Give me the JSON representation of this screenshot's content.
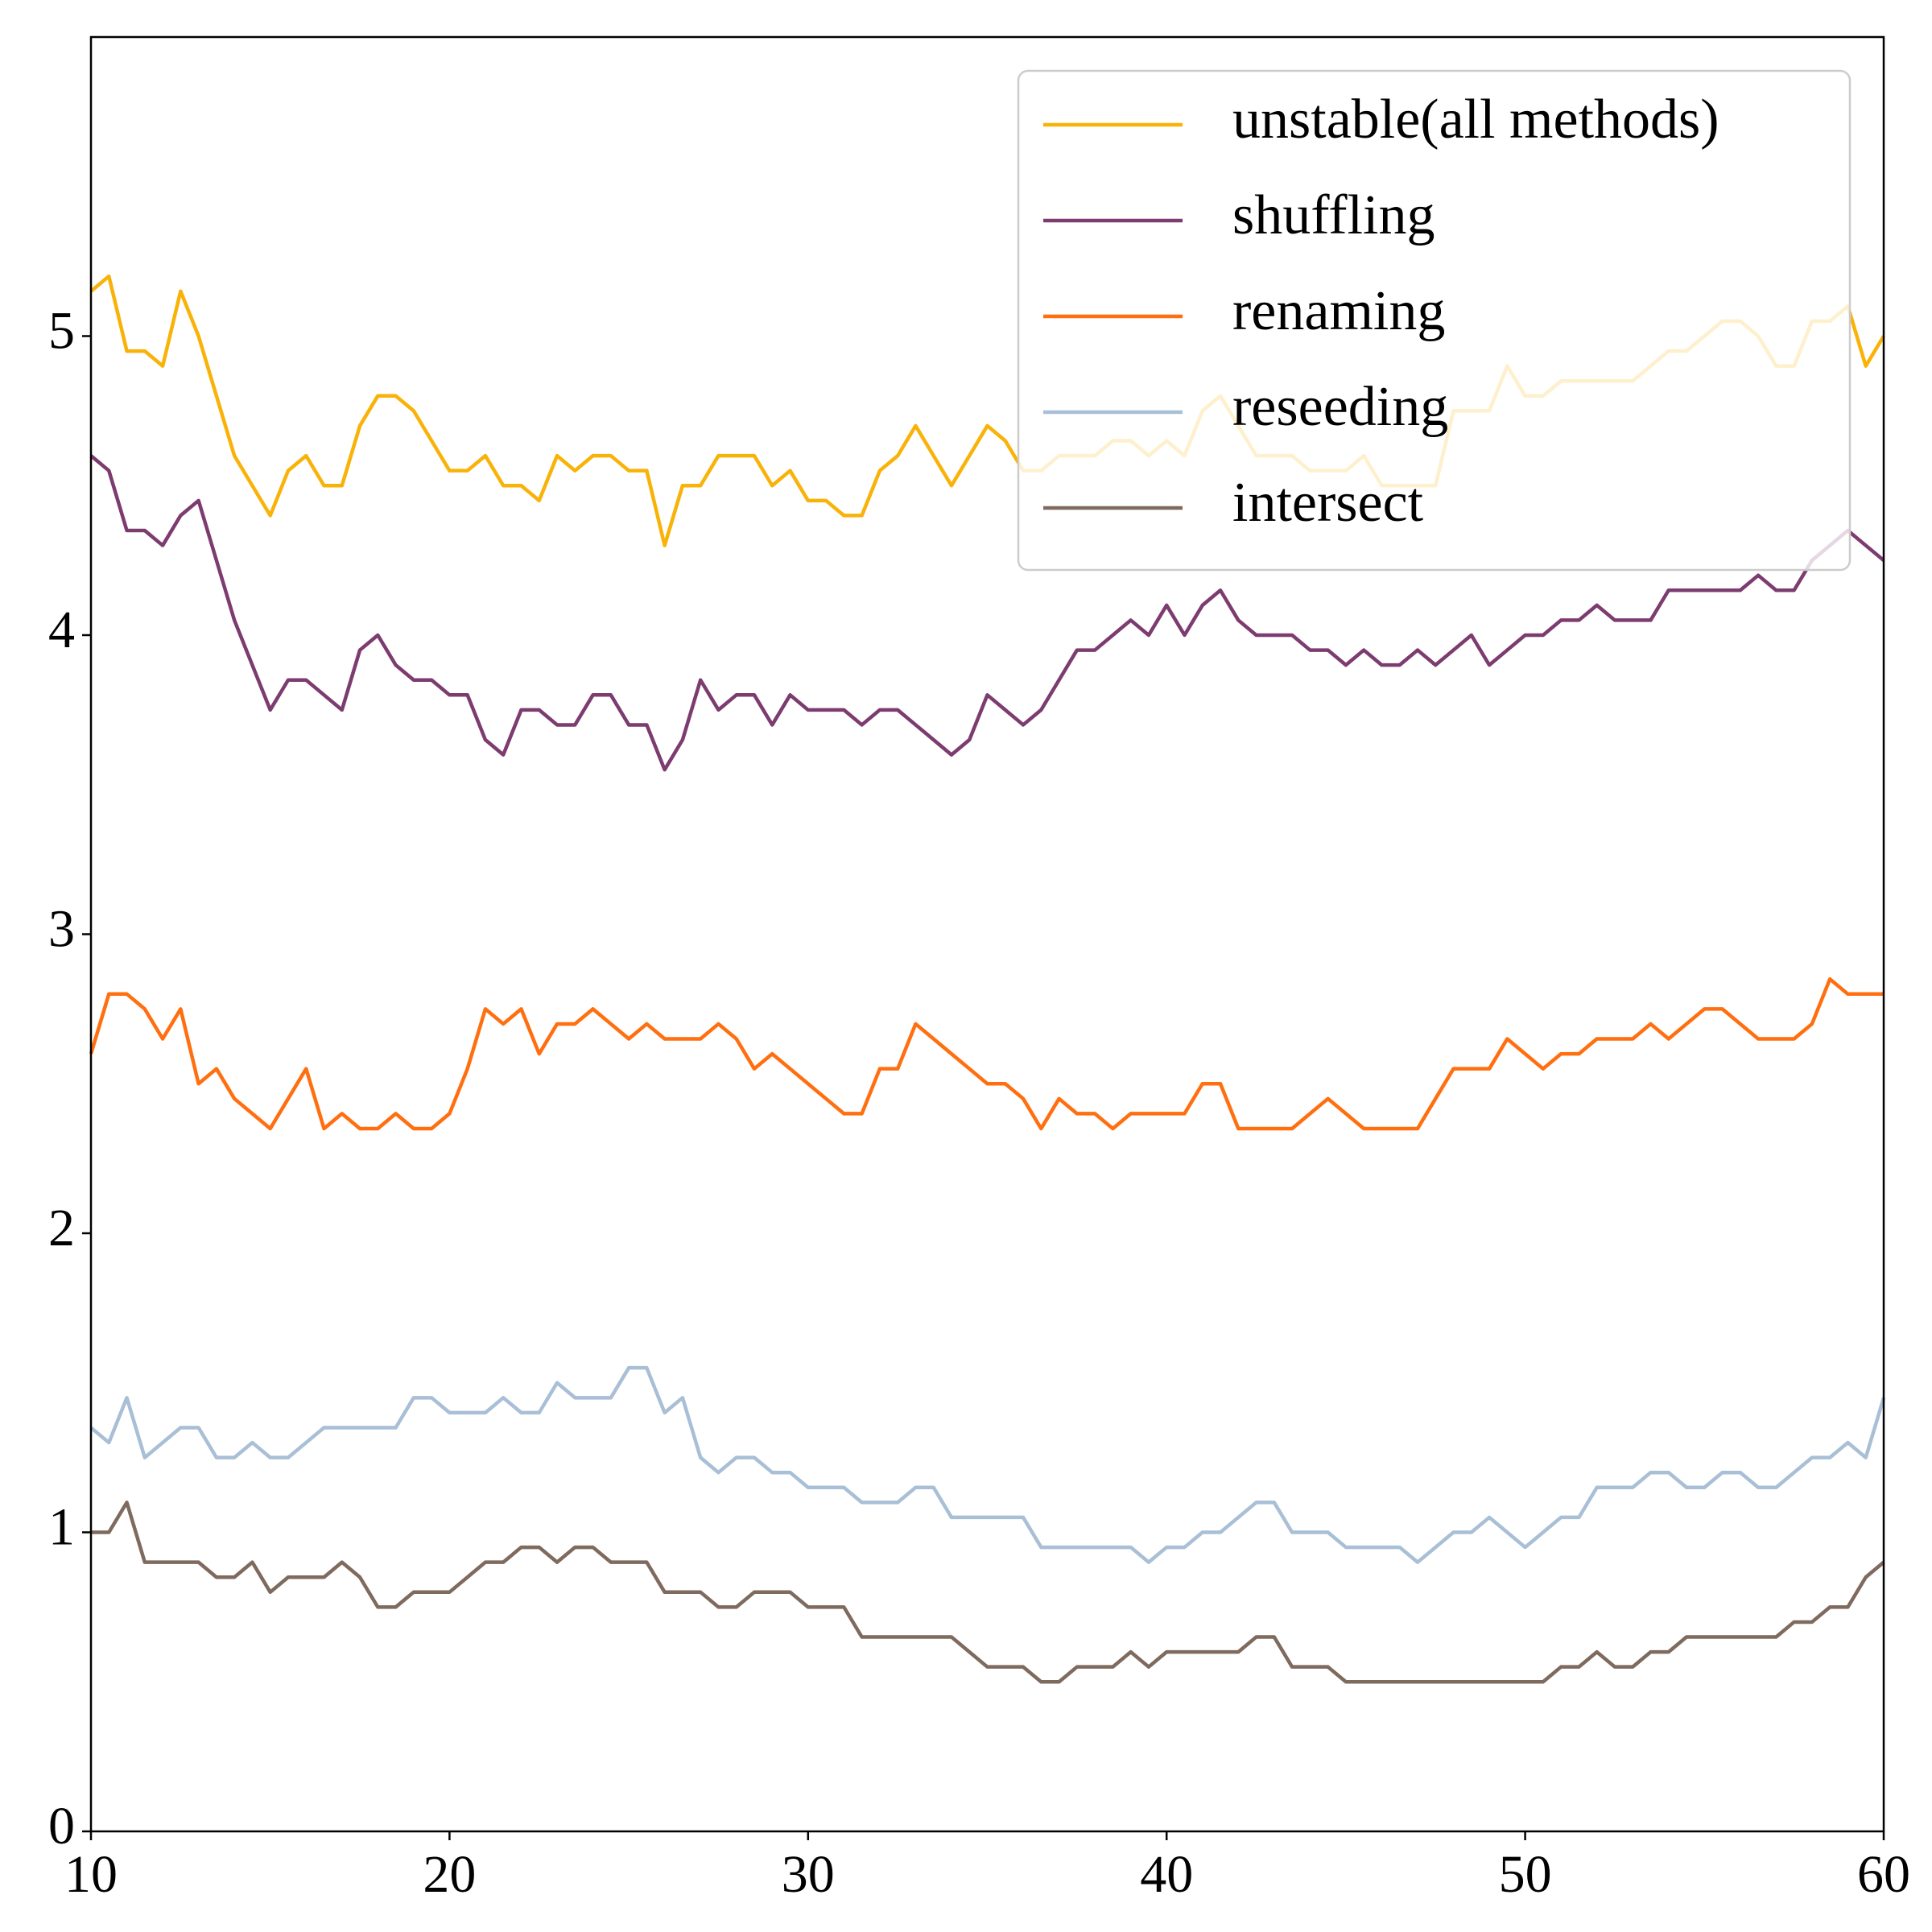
{
  "chart_data": {
    "type": "line",
    "x": [
      10,
      10.5,
      11,
      11.5,
      12,
      12.5,
      13,
      13.5,
      14,
      14.5,
      15,
      15.5,
      16,
      16.5,
      17,
      17.5,
      18,
      18.5,
      19,
      19.5,
      20,
      20.5,
      21,
      21.5,
      22,
      22.5,
      23,
      23.5,
      24,
      24.5,
      25,
      25.5,
      26,
      26.5,
      27,
      27.5,
      28,
      28.5,
      29,
      29.5,
      30,
      30.5,
      31,
      31.5,
      32,
      32.5,
      33,
      33.5,
      34,
      34.5,
      35,
      35.5,
      36,
      36.5,
      37,
      37.5,
      38,
      38.5,
      39,
      39.5,
      40,
      40.5,
      41,
      41.5,
      42,
      42.5,
      43,
      43.5,
      44,
      44.5,
      45,
      45.5,
      46,
      46.5,
      47,
      47.5,
      48,
      48.5,
      49,
      49.5,
      50,
      50.5,
      51,
      51.5,
      52,
      52.5,
      53,
      53.5,
      54,
      54.5,
      55,
      55.5,
      56,
      56.5,
      57,
      57.5,
      58,
      58.5,
      59,
      59.5,
      60
    ],
    "series": [
      {
        "name": "unstable(all methods)",
        "color": "#f9b208",
        "values": [
          5.15,
          5.2,
          4.95,
          4.95,
          4.9,
          5.15,
          5.0,
          4.8,
          4.6,
          4.5,
          4.4,
          4.55,
          4.6,
          4.5,
          4.5,
          4.7,
          4.8,
          4.8,
          4.75,
          4.65,
          4.55,
          4.55,
          4.6,
          4.5,
          4.5,
          4.45,
          4.6,
          4.55,
          4.6,
          4.6,
          4.55,
          4.55,
          4.3,
          4.5,
          4.5,
          4.6,
          4.6,
          4.6,
          4.5,
          4.55,
          4.45,
          4.45,
          4.4,
          4.4,
          4.55,
          4.6,
          4.7,
          4.6,
          4.5,
          4.6,
          4.7,
          4.65,
          4.55,
          4.55,
          4.6,
          4.6,
          4.6,
          4.65,
          4.65,
          4.6,
          4.65,
          4.6,
          4.75,
          4.8,
          4.7,
          4.6,
          4.6,
          4.6,
          4.55,
          4.55,
          4.55,
          4.6,
          4.5,
          4.5,
          4.5,
          4.5,
          4.75,
          4.75,
          4.75,
          4.9,
          4.8,
          4.8,
          4.85,
          4.85,
          4.85,
          4.85,
          4.85,
          4.9,
          4.95,
          4.95,
          5.0,
          5.05,
          5.05,
          5.0,
          4.9,
          4.9,
          5.05,
          5.05,
          5.1,
          4.9,
          5.0
        ]
      },
      {
        "name": "shuffling",
        "color": "#7d3c6f",
        "values": [
          4.6,
          4.55,
          4.35,
          4.35,
          4.3,
          4.4,
          4.45,
          4.25,
          4.05,
          3.9,
          3.75,
          3.85,
          3.85,
          3.8,
          3.75,
          3.95,
          4.0,
          3.9,
          3.85,
          3.85,
          3.8,
          3.8,
          3.65,
          3.6,
          3.75,
          3.75,
          3.7,
          3.7,
          3.8,
          3.8,
          3.7,
          3.7,
          3.55,
          3.65,
          3.85,
          3.75,
          3.8,
          3.8,
          3.7,
          3.8,
          3.75,
          3.75,
          3.75,
          3.7,
          3.75,
          3.75,
          3.7,
          3.65,
          3.6,
          3.65,
          3.8,
          3.75,
          3.7,
          3.75,
          3.85,
          3.95,
          3.95,
          4.0,
          4.05,
          4.0,
          4.1,
          4.0,
          4.1,
          4.15,
          4.05,
          4.0,
          4.0,
          4.0,
          3.95,
          3.95,
          3.9,
          3.95,
          3.9,
          3.9,
          3.95,
          3.9,
          3.95,
          4.0,
          3.9,
          3.95,
          4.0,
          4.0,
          4.05,
          4.05,
          4.1,
          4.05,
          4.05,
          4.05,
          4.15,
          4.15,
          4.15,
          4.15,
          4.15,
          4.2,
          4.15,
          4.15,
          4.25,
          4.3,
          4.35,
          4.3,
          4.25
        ]
      },
      {
        "name": "renaming",
        "color": "#ff6f10",
        "values": [
          2.6,
          2.8,
          2.8,
          2.75,
          2.65,
          2.75,
          2.5,
          2.55,
          2.45,
          2.4,
          2.35,
          2.45,
          2.55,
          2.35,
          2.4,
          2.35,
          2.35,
          2.4,
          2.35,
          2.35,
          2.4,
          2.55,
          2.75,
          2.7,
          2.75,
          2.6,
          2.7,
          2.7,
          2.75,
          2.7,
          2.65,
          2.7,
          2.65,
          2.65,
          2.65,
          2.7,
          2.65,
          2.55,
          2.6,
          2.55,
          2.5,
          2.45,
          2.4,
          2.4,
          2.55,
          2.55,
          2.7,
          2.65,
          2.6,
          2.55,
          2.5,
          2.5,
          2.45,
          2.35,
          2.45,
          2.4,
          2.4,
          2.35,
          2.4,
          2.4,
          2.4,
          2.4,
          2.5,
          2.5,
          2.35,
          2.35,
          2.35,
          2.35,
          2.4,
          2.45,
          2.4,
          2.35,
          2.35,
          2.35,
          2.35,
          2.45,
          2.55,
          2.55,
          2.55,
          2.65,
          2.6,
          2.55,
          2.6,
          2.6,
          2.65,
          2.65,
          2.65,
          2.7,
          2.65,
          2.7,
          2.75,
          2.75,
          2.7,
          2.65,
          2.65,
          2.65,
          2.7,
          2.85,
          2.8,
          2.8,
          2.8
        ]
      },
      {
        "name": "reseeding",
        "color": "#a9bfd6",
        "values": [
          1.35,
          1.3,
          1.45,
          1.25,
          1.3,
          1.35,
          1.35,
          1.25,
          1.25,
          1.3,
          1.25,
          1.25,
          1.3,
          1.35,
          1.35,
          1.35,
          1.35,
          1.35,
          1.45,
          1.45,
          1.4,
          1.4,
          1.4,
          1.45,
          1.4,
          1.4,
          1.5,
          1.45,
          1.45,
          1.45,
          1.55,
          1.55,
          1.4,
          1.45,
          1.25,
          1.2,
          1.25,
          1.25,
          1.2,
          1.2,
          1.15,
          1.15,
          1.15,
          1.1,
          1.1,
          1.1,
          1.15,
          1.15,
          1.05,
          1.05,
          1.05,
          1.05,
          1.05,
          0.95,
          0.95,
          0.95,
          0.95,
          0.95,
          0.95,
          0.9,
          0.95,
          0.95,
          1.0,
          1.0,
          1.05,
          1.1,
          1.1,
          1.0,
          1.0,
          1.0,
          0.95,
          0.95,
          0.95,
          0.95,
          0.9,
          0.95,
          1.0,
          1.0,
          1.05,
          1.0,
          0.95,
          1.0,
          1.05,
          1.05,
          1.15,
          1.15,
          1.15,
          1.2,
          1.2,
          1.15,
          1.15,
          1.2,
          1.2,
          1.15,
          1.15,
          1.2,
          1.25,
          1.25,
          1.3,
          1.25,
          1.45
        ]
      },
      {
        "name": "intersect",
        "color": "#7f6a5e",
        "values": [
          1.0,
          1.0,
          1.1,
          0.9,
          0.9,
          0.9,
          0.9,
          0.85,
          0.85,
          0.9,
          0.8,
          0.85,
          0.85,
          0.85,
          0.9,
          0.85,
          0.75,
          0.75,
          0.8,
          0.8,
          0.8,
          0.85,
          0.9,
          0.9,
          0.95,
          0.95,
          0.9,
          0.95,
          0.95,
          0.9,
          0.9,
          0.9,
          0.8,
          0.8,
          0.8,
          0.75,
          0.75,
          0.8,
          0.8,
          0.8,
          0.75,
          0.75,
          0.75,
          0.65,
          0.65,
          0.65,
          0.65,
          0.65,
          0.65,
          0.6,
          0.55,
          0.55,
          0.55,
          0.5,
          0.5,
          0.55,
          0.55,
          0.55,
          0.6,
          0.55,
          0.6,
          0.6,
          0.6,
          0.6,
          0.6,
          0.65,
          0.65,
          0.55,
          0.55,
          0.55,
          0.5,
          0.5,
          0.5,
          0.5,
          0.5,
          0.5,
          0.5,
          0.5,
          0.5,
          0.5,
          0.5,
          0.5,
          0.55,
          0.55,
          0.6,
          0.55,
          0.55,
          0.6,
          0.6,
          0.65,
          0.65,
          0.65,
          0.65,
          0.65,
          0.65,
          0.7,
          0.7,
          0.75,
          0.75,
          0.85,
          0.9
        ]
      }
    ],
    "xlim": [
      10,
      60
    ],
    "xticks": [
      10,
      20,
      30,
      40,
      50,
      60
    ],
    "ylim": [
      0,
      6
    ],
    "yticks": [
      0,
      1,
      2,
      3,
      4,
      5
    ],
    "legend": "upper right"
  }
}
